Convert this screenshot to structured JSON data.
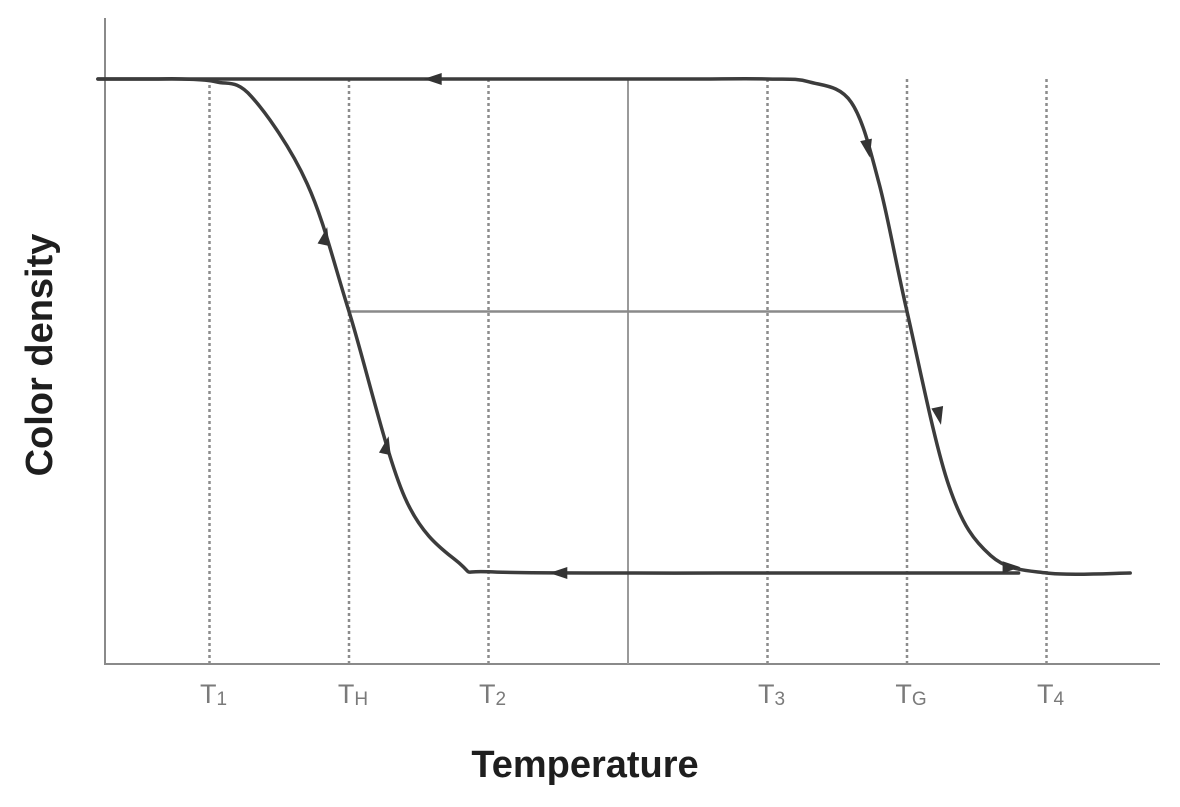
{
  "chart_data": {
    "type": "line",
    "xlabel": "Temperature",
    "ylabel": "Color density",
    "grid": false,
    "legend": "none",
    "x_ticks": [
      {
        "pos": 1,
        "main": "T",
        "sub": "1"
      },
      {
        "pos": 2,
        "main": "T",
        "sub": "H"
      },
      {
        "pos": 3,
        "main": "T",
        "sub": "2"
      },
      {
        "pos": 5,
        "main": "T",
        "sub": "3"
      },
      {
        "pos": 6,
        "main": "T",
        "sub": "G"
      },
      {
        "pos": 7,
        "main": "T",
        "sub": "4"
      }
    ],
    "xlim": [
      0,
      8
    ],
    "ylim": [
      0,
      1
    ],
    "levels": {
      "high": 1,
      "mid": 0.6,
      "low": 0.15
    },
    "series": [
      {
        "direction": "cooling",
        "x": [
          0.2,
          0.3,
          0.6,
          0.8,
          1.05,
          1.3,
          1.7,
          2.0,
          2.4,
          2.8,
          3.0,
          4.0,
          5.0,
          6.0,
          6.8
        ],
        "y": [
          1.0,
          1.0,
          1.0,
          1.0,
          0.995,
          0.97,
          0.82,
          0.6,
          0.28,
          0.165,
          0.152,
          0.15,
          0.15,
          0.15,
          0.15
        ]
      },
      {
        "direction": "heating",
        "x": [
          0.2,
          1.0,
          2.0,
          3.0,
          4.0,
          4.5,
          5.0,
          5.3,
          5.6,
          5.8,
          6.0,
          6.3,
          6.6,
          7.0,
          7.6
        ],
        "y": [
          1.0,
          1.0,
          1.0,
          1.0,
          1.0,
          1.0,
          1.0,
          0.995,
          0.96,
          0.82,
          0.6,
          0.3,
          0.18,
          0.15,
          0.15
        ]
      }
    ],
    "reference_lines": {
      "vertical_dashed": [
        1,
        2,
        3,
        5,
        6,
        7
      ],
      "vertical_solid": [
        4
      ],
      "horizontal_mid": [
        2,
        6
      ]
    }
  }
}
